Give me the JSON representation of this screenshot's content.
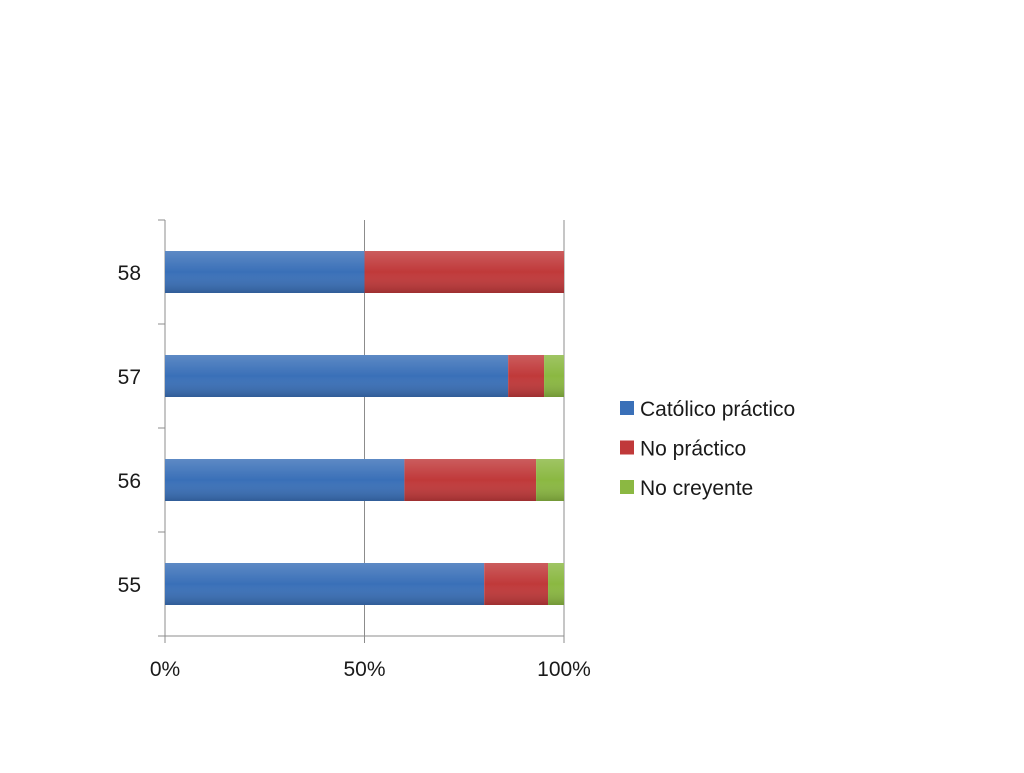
{
  "chart_data": {
    "type": "bar",
    "orientation": "horizontal",
    "stacked": "percent",
    "categories": [
      "55",
      "56",
      "57",
      "58"
    ],
    "series": [
      {
        "name": "Católico práctico",
        "values": [
          80,
          60,
          86,
          50
        ],
        "color": "#3a70b8"
      },
      {
        "name": "No práctico",
        "values": [
          16,
          33,
          9,
          50
        ],
        "color": "#c0393a"
      },
      {
        "name": "No creyente",
        "values": [
          4,
          7,
          5,
          0
        ],
        "color": "#8bb842"
      }
    ],
    "x_ticks": [
      "0%",
      "50%",
      "100%"
    ],
    "xlim": [
      0,
      100
    ],
    "title": "",
    "xlabel": "",
    "ylabel": "",
    "grid": "vertical",
    "legend": "right"
  }
}
